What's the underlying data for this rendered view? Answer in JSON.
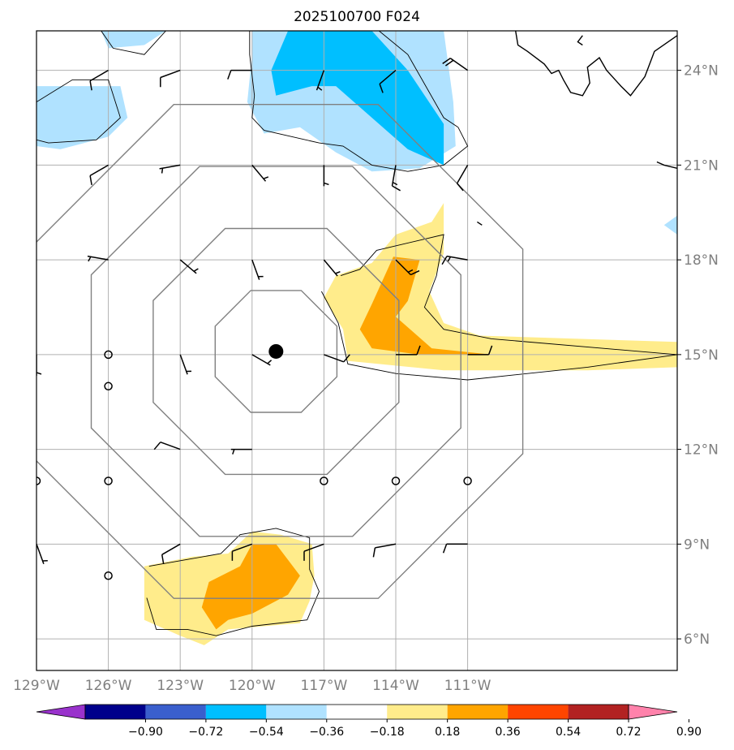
{
  "chart_data": {
    "type": "map-contour",
    "title": "2025100700 F024",
    "lon_range": [
      -129,
      -102.25
    ],
    "lat_range": [
      5,
      25.25
    ],
    "lon_ticks": [
      {
        "value": -129,
        "label": "129°W"
      },
      {
        "value": -126,
        "label": "126°W"
      },
      {
        "value": -123,
        "label": "123°W"
      },
      {
        "value": -120,
        "label": "120°W"
      },
      {
        "value": -117,
        "label": "117°W"
      },
      {
        "value": -114,
        "label": "114°W"
      },
      {
        "value": -111,
        "label": "111°W"
      }
    ],
    "lat_ticks": [
      {
        "value": 6,
        "label": "6°N"
      },
      {
        "value": 9,
        "label": "9°N"
      },
      {
        "value": 12,
        "label": "12°N"
      },
      {
        "value": 15,
        "label": "15°N"
      },
      {
        "value": 18,
        "label": "18°N"
      },
      {
        "value": 21,
        "label": "21°N"
      },
      {
        "value": 24,
        "label": "24°N"
      }
    ],
    "center": {
      "lon": -119,
      "lat": 15.1
    },
    "range_ring_radii_deg": [
      2.75,
      5.55,
      8.35,
      11.15
    ],
    "colorbar": {
      "ticks": [
        "−0.90",
        "−0.72",
        "−0.54",
        "−0.36",
        "−0.18",
        "0.18",
        "0.36",
        "0.54",
        "0.72",
        "0.90"
      ],
      "colors": [
        "#9932cc",
        "#00008b",
        "#3a5fcd",
        "#00bfff",
        "#b0e2ff",
        "#ffffff",
        "#ffec8b",
        "#ffa500",
        "#ff4500",
        "#b22222",
        "#ff82ab"
      ]
    },
    "shaded_regions": [
      {
        "level": -0.18,
        "color": "#b0e2ff",
        "points": [
          [
            -120,
            25.25
          ],
          [
            -112,
            25.25
          ],
          [
            -111.6,
            23
          ],
          [
            -111.5,
            21.6
          ],
          [
            -113,
            20.9
          ],
          [
            -115,
            20.8
          ],
          [
            -116.5,
            21.4
          ],
          [
            -118,
            22.2
          ],
          [
            -119.5,
            22
          ],
          [
            -120.2,
            23
          ],
          [
            -120,
            24.5
          ]
        ]
      },
      {
        "level": -0.36,
        "color": "#00bfff",
        "points": [
          [
            -118.5,
            25.25
          ],
          [
            -115,
            25.25
          ],
          [
            -113.5,
            24
          ],
          [
            -112,
            22.3
          ],
          [
            -112,
            21
          ],
          [
            -113.5,
            21.5
          ],
          [
            -115,
            22.5
          ],
          [
            -116.5,
            23.5
          ],
          [
            -117.5,
            23.5
          ],
          [
            -119,
            23.2
          ],
          [
            -119.2,
            24
          ]
        ]
      },
      {
        "level": -0.18,
        "color": "#b0e2ff",
        "points": [
          [
            -129,
            23.5
          ],
          [
            -125.5,
            23.5
          ],
          [
            -125.2,
            22.5
          ],
          [
            -126,
            21.9
          ],
          [
            -128,
            21.5
          ],
          [
            -129,
            21.6
          ]
        ]
      },
      {
        "level": -0.18,
        "color": "#b0e2ff",
        "points": [
          [
            -126.3,
            25.25
          ],
          [
            -123.6,
            25.25
          ],
          [
            -124.5,
            24.8
          ],
          [
            -126,
            24.7
          ]
        ]
      },
      {
        "level": -0.18,
        "color": "#b0e2ff",
        "points": [
          [
            -102.25,
            19.4
          ],
          [
            -102.8,
            19.1
          ],
          [
            -102.25,
            18.8
          ]
        ]
      },
      {
        "level": 0.18,
        "color": "#ffec8b",
        "points": [
          [
            -116.5,
            17.5
          ],
          [
            -115,
            17.9
          ],
          [
            -114,
            18.8
          ],
          [
            -112.5,
            19.2
          ],
          [
            -112,
            19.8
          ],
          [
            -112,
            18.2
          ],
          [
            -112.6,
            17
          ],
          [
            -112,
            16
          ],
          [
            -110.5,
            15.6
          ],
          [
            -102.25,
            15.4
          ],
          [
            -102.25,
            14.6
          ],
          [
            -106,
            14.5
          ],
          [
            -112,
            14.5
          ],
          [
            -116,
            14.8
          ],
          [
            -116.2,
            15.8
          ],
          [
            -117,
            16.8
          ]
        ]
      },
      {
        "level": 0.36,
        "color": "#ffa500",
        "points": [
          [
            -114.1,
            18.1
          ],
          [
            -113,
            18
          ],
          [
            -113.5,
            16.7
          ],
          [
            -114,
            16.2
          ],
          [
            -112.5,
            15.2
          ],
          [
            -110,
            15
          ],
          [
            -113,
            15
          ],
          [
            -115,
            15.2
          ],
          [
            -115.5,
            15.8
          ],
          [
            -115,
            16.6
          ]
        ]
      },
      {
        "level": 0.18,
        "color": "#ffec8b",
        "points": [
          [
            -124.5,
            8.3
          ],
          [
            -122.5,
            8.6
          ],
          [
            -121,
            8.7
          ],
          [
            -120,
            9.4
          ],
          [
            -118.8,
            9.3
          ],
          [
            -117.5,
            9
          ],
          [
            -117.4,
            8
          ],
          [
            -117.6,
            7.2
          ],
          [
            -118,
            6.5
          ],
          [
            -121,
            6.3
          ],
          [
            -122,
            5.8
          ],
          [
            -123,
            6.1
          ],
          [
            -124.5,
            6.6
          ]
        ]
      },
      {
        "level": 0.36,
        "color": "#ffa500",
        "points": [
          [
            -121.8,
            7.8
          ],
          [
            -120.5,
            8.3
          ],
          [
            -120,
            9
          ],
          [
            -119,
            9
          ],
          [
            -118,
            8
          ],
          [
            -118.5,
            7.4
          ],
          [
            -120,
            6.8
          ],
          [
            -121,
            6.6
          ],
          [
            -121.5,
            6.3
          ],
          [
            -122.1,
            7
          ]
        ]
      }
    ],
    "contour_lines": [
      {
        "points": [
          [
            -120.1,
            25.25
          ],
          [
            -120.1,
            24.5
          ],
          [
            -119.9,
            23.2
          ],
          [
            -120,
            22.5
          ],
          [
            -119.5,
            22.1
          ],
          [
            -117.2,
            21.7
          ],
          [
            -116.2,
            21.6
          ],
          [
            -115,
            21
          ],
          [
            -113.5,
            20.8
          ],
          [
            -112,
            21
          ],
          [
            -111,
            21.6
          ],
          [
            -111.4,
            22.2
          ]
        ]
      },
      {
        "points": [
          [
            -114.7,
            25.25
          ],
          [
            -113.5,
            24.5
          ],
          [
            -112,
            22.5
          ],
          [
            -111.4,
            22.2
          ]
        ]
      },
      {
        "points": [
          [
            -129,
            23
          ],
          [
            -127.5,
            23.7
          ],
          [
            -126,
            23.7
          ],
          [
            -125.5,
            22.5
          ],
          [
            -126.5,
            21.8
          ],
          [
            -128.5,
            21.7
          ],
          [
            -129,
            21.8
          ]
        ]
      },
      {
        "points": [
          [
            -126.3,
            25.25
          ],
          [
            -125.8,
            24.7
          ],
          [
            -124.5,
            24.5
          ],
          [
            -123.6,
            25.25
          ]
        ]
      },
      {
        "points": [
          [
            -116.3,
            17.5
          ],
          [
            -115.5,
            17.7
          ],
          [
            -114.8,
            18.3
          ],
          [
            -112,
            18.8
          ],
          [
            -112.3,
            17.5
          ],
          [
            -112.8,
            16.5
          ],
          [
            -112,
            15.8
          ],
          [
            -110,
            15.5
          ],
          [
            -102.25,
            15
          ]
        ]
      },
      {
        "points": [
          [
            -102.25,
            15
          ],
          [
            -106,
            14.6
          ],
          [
            -111,
            14.2
          ],
          [
            -114,
            14.4
          ],
          [
            -116,
            14.7
          ],
          [
            -116.4,
            16
          ],
          [
            -117.1,
            17
          ]
        ]
      },
      {
        "points": [
          [
            -124.3,
            8.3
          ],
          [
            -121.3,
            8.7
          ],
          [
            -120.5,
            9.3
          ],
          [
            -119,
            9.5
          ],
          [
            -117.6,
            9.2
          ],
          [
            -117.6,
            8.2
          ],
          [
            -117.2,
            7.5
          ],
          [
            -117.7,
            6.6
          ],
          [
            -120,
            6.4
          ],
          [
            -121.5,
            6.1
          ],
          [
            -122.7,
            6.3
          ],
          [
            -124,
            6.3
          ],
          [
            -124.4,
            7.3
          ]
        ]
      }
    ],
    "coastline": [
      [
        [
          -109,
          25.25
        ],
        [
          -108.9,
          24.8
        ],
        [
          -108.5,
          24.6
        ],
        [
          -107.8,
          24.2
        ],
        [
          -107.5,
          23.9
        ],
        [
          -107.2,
          24
        ],
        [
          -107,
          23.7
        ],
        [
          -106.7,
          23.3
        ],
        [
          -106.2,
          23.2
        ],
        [
          -105.9,
          23.6
        ],
        [
          -106,
          24.1
        ],
        [
          -105.5,
          24.4
        ],
        [
          -105.2,
          24
        ],
        [
          -104.6,
          23.5
        ],
        [
          -104.2,
          23.2
        ],
        [
          -103.6,
          23.8
        ],
        [
          -103.2,
          24.6
        ],
        [
          -102.25,
          25.1
        ]
      ],
      [
        [
          -106.2,
          25.1
        ],
        [
          -106.4,
          24.9
        ],
        [
          -106.2,
          24.8
        ]
      ],
      [
        [
          -103.1,
          21.1
        ],
        [
          -102.8,
          21
        ],
        [
          -102.25,
          20.9
        ]
      ],
      [
        [
          -110.6,
          19.2
        ],
        [
          -110.4,
          19.1
        ]
      ]
    ],
    "wind_barbs": [
      [
        -126,
        11,
        0,
        0
      ],
      [
        -126,
        8,
        0,
        0
      ],
      [
        -126,
        14,
        0,
        0
      ],
      [
        -117,
        11,
        0,
        0
      ],
      [
        -114,
        11,
        0,
        0
      ],
      [
        -111,
        11,
        0,
        0
      ],
      [
        -129,
        11,
        0,
        0
      ],
      [
        -129,
        24,
        230,
        10
      ],
      [
        -126,
        24,
        240,
        10
      ],
      [
        -123,
        24,
        250,
        10
      ],
      [
        -120,
        24,
        270,
        10
      ],
      [
        -117,
        24,
        200,
        5
      ],
      [
        -114,
        24,
        230,
        10
      ],
      [
        -111,
        24,
        305,
        20
      ],
      [
        -129,
        21,
        240,
        5
      ],
      [
        -126,
        21,
        240,
        10
      ],
      [
        -123,
        21,
        260,
        5
      ],
      [
        -120,
        21,
        140,
        5
      ],
      [
        -117,
        21,
        180,
        5
      ],
      [
        -114,
        21,
        190,
        15
      ],
      [
        -111,
        21,
        210,
        10
      ],
      [
        -129,
        18,
        240,
        5
      ],
      [
        -126,
        18,
        280,
        5
      ],
      [
        -123,
        18,
        130,
        5
      ],
      [
        -120,
        18,
        160,
        5
      ],
      [
        -117,
        18,
        140,
        5
      ],
      [
        -114,
        18,
        135,
        15
      ],
      [
        -111,
        18,
        280,
        15
      ],
      [
        -129,
        15,
        180,
        5
      ],
      [
        -126,
        15,
        0,
        0
      ],
      [
        -123,
        15,
        160,
        5
      ],
      [
        -120,
        15,
        120,
        5
      ],
      [
        -117,
        15,
        110,
        10
      ],
      [
        -114,
        15,
        90,
        10
      ],
      [
        -111,
        15,
        90,
        10
      ],
      [
        -123,
        12,
        290,
        10
      ],
      [
        -120,
        12,
        270,
        5
      ],
      [
        -129,
        9,
        160,
        5
      ],
      [
        -123,
        9,
        240,
        10
      ],
      [
        -120,
        9,
        250,
        10
      ],
      [
        -117,
        9,
        250,
        10
      ],
      [
        -114,
        9,
        260,
        10
      ],
      [
        -111,
        9,
        270,
        10
      ]
    ]
  }
}
